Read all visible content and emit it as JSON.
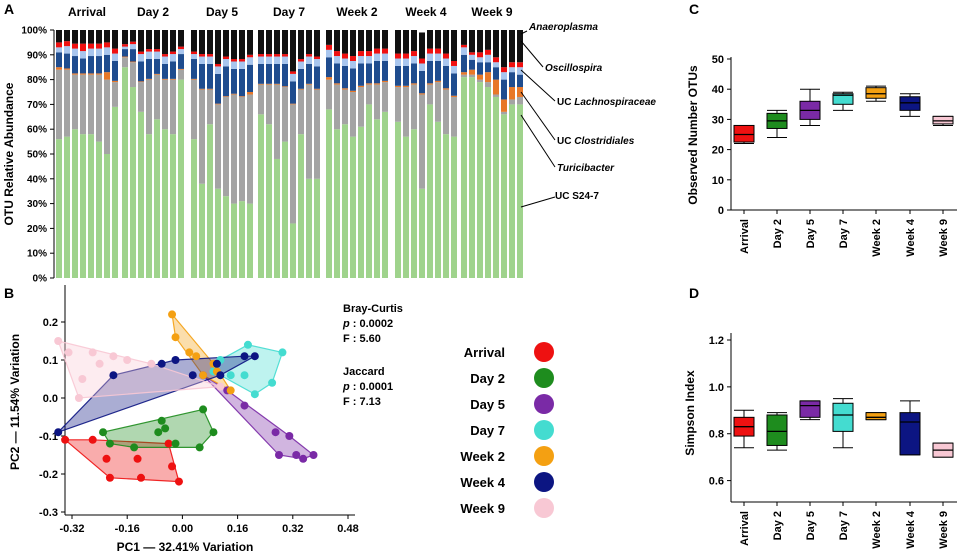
{
  "figure": {
    "colors": {
      "Arrival": "#ee1111",
      "Day 2": "#1e8c1e",
      "Day 5": "#7a2aa6",
      "Day 7": "#44dcd0",
      "Week 2": "#f4a012",
      "Week 4": "#0c1582",
      "Week 9": "#f8c8d4"
    },
    "taxa_colors": {
      "UC S24-7": "#9fd38c",
      "UC Clostridiales": "#a4a4a4",
      "Turicibacter": "#e87828",
      "UC Lachnospiraceae": "#1f4c8e",
      "Oscillospira": "#a9c6ee",
      "Anaeroplasma": "#f01010",
      "Other": "#111111"
    }
  },
  "chart_data": [
    {
      "panel": "A",
      "type": "bar",
      "stacked": true,
      "ylabel": "OTU Relative Abundance",
      "yticks": [
        "0%",
        "10%",
        "20%",
        "30%",
        "40%",
        "50%",
        "60%",
        "70%",
        "80%",
        "90%",
        "100%"
      ],
      "ylim": [
        0,
        100
      ],
      "groups": [
        "Arrival",
        "Day 2",
        "Day 5",
        "Day 7",
        "Week 2",
        "Week 4",
        "Week 9"
      ],
      "bars_per_group": 8,
      "series_order": [
        "UC S24-7",
        "UC Clostridiales",
        "Turicibacter",
        "UC Lachnospiraceae",
        "Oscillospira",
        "Anaeroplasma",
        "Other"
      ],
      "legend": [
        "Anaeroplasma",
        "Oscillospira",
        "UC Lachnospiraceae",
        "UC Clostridiales",
        "Turicibacter",
        "UC S24-7"
      ],
      "legend_prefix": "UC",
      "bars": {
        "UC S24-7": [
          56,
          57,
          60,
          58,
          58,
          55,
          50,
          69,
          85,
          77,
          67,
          58,
          64,
          60,
          58,
          80,
          56,
          38,
          62,
          36,
          33,
          30,
          31,
          30,
          66,
          62,
          48,
          55,
          22,
          58,
          40,
          40,
          68,
          60,
          62,
          57,
          61,
          70,
          64,
          67,
          63,
          57,
          60,
          36,
          70,
          63,
          58,
          57,
          81,
          81,
          79,
          77,
          73,
          66,
          70,
          70
        ],
        "UC Clostridiales": [
          28,
          27,
          22,
          24,
          24,
          27,
          30,
          10,
          4,
          10,
          12,
          22,
          18,
          20,
          22,
          4,
          24,
          38,
          14,
          34,
          40,
          44,
          42,
          44,
          12,
          16,
          30,
          22,
          48,
          18,
          38,
          36,
          12,
          18,
          14,
          18,
          16,
          8,
          14,
          12,
          14,
          20,
          18,
          38,
          8,
          16,
          18,
          16,
          1,
          1,
          1,
          2,
          1,
          1,
          2,
          3
        ],
        "Turicibacter": [
          1,
          0.5,
          0.5,
          0.5,
          0.5,
          0.5,
          3,
          0.5,
          0.3,
          0.3,
          0.3,
          0.3,
          0.3,
          0.3,
          0.3,
          0.3,
          0.3,
          0.3,
          0.3,
          0.3,
          0.3,
          0.3,
          0.3,
          1,
          0.3,
          0.3,
          0.3,
          0.3,
          0.3,
          0.3,
          0.3,
          0.3,
          1,
          0.5,
          0.5,
          0.5,
          0.5,
          0.5,
          0.5,
          0.5,
          0.5,
          0.5,
          0.5,
          0.5,
          0.5,
          0.5,
          0.5,
          0.5,
          1,
          2,
          2,
          4,
          6,
          5,
          5,
          4
        ],
        "UC Lachnospiraceae": [
          6,
          6,
          7,
          6,
          7,
          7,
          7,
          8,
          3,
          5,
          8,
          8,
          6,
          6,
          7,
          6,
          8,
          10,
          10,
          12,
          12,
          10,
          11,
          11,
          8,
          8,
          8,
          9,
          9,
          8,
          8,
          9,
          8,
          8,
          9,
          9,
          9,
          8,
          9,
          8,
          8,
          8,
          8,
          9,
          9,
          8,
          9,
          9,
          7,
          4,
          5,
          4,
          5,
          8,
          6,
          5
        ],
        "Oscillospira": [
          2,
          3,
          3,
          3,
          3,
          3,
          3,
          3,
          1,
          2,
          3,
          3,
          3,
          3,
          3,
          2,
          2,
          3,
          3,
          3,
          3,
          3,
          3,
          3,
          3,
          3,
          3,
          3,
          3,
          3,
          3,
          3,
          3,
          3,
          3,
          3,
          3,
          3,
          3,
          3,
          3,
          3,
          3,
          3,
          3,
          3,
          3,
          3,
          3,
          2,
          2,
          3,
          2,
          3,
          2,
          3
        ],
        "Anaeroplasma": [
          2,
          2,
          2,
          3,
          2,
          2,
          2,
          2,
          1,
          1,
          1,
          1,
          1,
          1,
          1,
          1,
          1,
          1,
          1,
          1,
          1,
          1,
          1,
          1,
          1,
          1,
          1,
          1,
          1,
          1,
          1,
          1,
          2,
          2,
          2,
          2,
          2,
          2,
          2,
          2,
          2,
          2,
          2,
          2,
          2,
          2,
          2,
          2,
          1,
          1,
          2,
          2,
          2,
          2,
          2,
          2
        ],
        "Other": [
          5,
          4.5,
          5.5,
          5.5,
          5.5,
          5.5,
          5,
          7.5,
          5.7,
          4.7,
          8.7,
          7.7,
          7.7,
          9.7,
          8.7,
          6.7,
          8.7,
          9.7,
          9.7,
          13.7,
          10.7,
          11.7,
          11.7,
          10,
          9.7,
          9.7,
          9.7,
          9.7,
          16.7,
          11.7,
          9.7,
          10.7,
          6,
          8.5,
          9.5,
          10.5,
          8.5,
          8.5,
          7.5,
          7.5,
          9.5,
          9.5,
          8.5,
          10.5,
          7.5,
          7.5,
          9.5,
          12.5,
          6,
          9,
          9,
          8,
          11,
          15,
          13,
          13
        ]
      }
    },
    {
      "panel": "B",
      "type": "scatter",
      "xlabel": "PC1 — 32.41% Variation",
      "ylabel": "PC2 — 11.54% Variation",
      "xticks": [
        -0.32,
        -0.16,
        0.0,
        0.16,
        0.32,
        0.48
      ],
      "xtick_labels": [
        "-0.32",
        "-0.16",
        "0.00",
        "0.16",
        "0.32",
        "0.48"
      ],
      "yticks": [
        -0.3,
        -0.2,
        -0.1,
        0.0,
        0.1,
        0.2
      ],
      "ytick_labels": [
        "-0.3",
        "-0.2",
        "-0.1",
        "0.0",
        "0.1",
        "0.2"
      ],
      "xlim": [
        -0.38,
        0.5
      ],
      "ylim": [
        -0.3,
        0.27
      ],
      "series": [
        {
          "name": "Arrival",
          "points": [
            [
              -0.34,
              -0.11
            ],
            [
              -0.26,
              -0.11
            ],
            [
              -0.22,
              -0.16
            ],
            [
              -0.21,
              -0.21
            ],
            [
              -0.12,
              -0.21
            ],
            [
              -0.13,
              -0.16
            ],
            [
              -0.04,
              -0.12
            ],
            [
              -0.01,
              -0.22
            ],
            [
              -0.03,
              -0.18
            ]
          ]
        },
        {
          "name": "Day 2",
          "points": [
            [
              -0.23,
              -0.09
            ],
            [
              -0.21,
              -0.12
            ],
            [
              -0.14,
              -0.13
            ],
            [
              -0.07,
              -0.09
            ],
            [
              -0.06,
              -0.06
            ],
            [
              -0.02,
              -0.12
            ],
            [
              -0.05,
              -0.08
            ],
            [
              0.05,
              -0.13
            ],
            [
              0.06,
              -0.03
            ],
            [
              0.09,
              -0.09
            ]
          ]
        },
        {
          "name": "Day 5",
          "points": [
            [
              0.06,
              0.06
            ],
            [
              0.13,
              0.02
            ],
            [
              0.18,
              -0.02
            ],
            [
              0.27,
              -0.09
            ],
            [
              0.31,
              -0.1
            ],
            [
              0.33,
              -0.15
            ],
            [
              0.35,
              -0.16
            ],
            [
              0.38,
              -0.15
            ],
            [
              0.28,
              -0.15
            ]
          ]
        },
        {
          "name": "Day 7",
          "points": [
            [
              0.09,
              0.07
            ],
            [
              0.11,
              0.1
            ],
            [
              0.14,
              0.06
            ],
            [
              0.18,
              0.06
            ],
            [
              0.19,
              0.14
            ],
            [
              0.29,
              0.12
            ],
            [
              0.26,
              0.04
            ],
            [
              0.21,
              0.01
            ]
          ]
        },
        {
          "name": "Week 2",
          "points": [
            [
              -0.03,
              0.22
            ],
            [
              -0.02,
              0.16
            ],
            [
              0.04,
              0.11
            ],
            [
              0.06,
              0.06
            ],
            [
              0.09,
              0.09
            ],
            [
              0.1,
              0.07
            ],
            [
              0.14,
              0.02
            ],
            [
              0.02,
              0.12
            ]
          ]
        },
        {
          "name": "Week 4",
          "points": [
            [
              -0.36,
              -0.09
            ],
            [
              -0.2,
              0.06
            ],
            [
              -0.06,
              0.09
            ],
            [
              -0.02,
              0.1
            ],
            [
              0.03,
              0.06
            ],
            [
              0.1,
              0.09
            ],
            [
              0.18,
              0.11
            ],
            [
              0.21,
              0.11
            ],
            [
              0.11,
              0.06
            ]
          ]
        },
        {
          "name": "Week 9",
          "points": [
            [
              -0.36,
              0.15
            ],
            [
              -0.33,
              0.12
            ],
            [
              -0.29,
              0.05
            ],
            [
              -0.26,
              0.12
            ],
            [
              -0.24,
              0.09
            ],
            [
              -0.2,
              0.11
            ],
            [
              -0.16,
              0.1
            ],
            [
              -0.09,
              0.09
            ],
            [
              0.11,
              0.03
            ],
            [
              -0.3,
              0.0
            ]
          ]
        }
      ],
      "stats": {
        "bray_label": "Bray-Curtis",
        "bray_p_label": "p",
        "bray_p": ": 0.0002",
        "bray_f": "F : 5.60",
        "jaccard_label": "Jaccard",
        "jaccard_p_label": "p",
        "jaccard_p": ": 0.0001",
        "jaccard_f": "F : 7.13"
      },
      "legend": [
        "Arrival",
        "Day 2",
        "Day 5",
        "Day 7",
        "Week 2",
        "Week 4",
        "Week 9"
      ]
    },
    {
      "panel": "C",
      "type": "box",
      "ylabel": "Observed Number OTUs",
      "categories": [
        "Arrival",
        "Day 2",
        "Day 5",
        "Day 7",
        "Week 2",
        "Week 4",
        "Week 9"
      ],
      "ylim": [
        0,
        50
      ],
      "yticks": [
        0,
        10,
        20,
        30,
        40,
        50
      ],
      "boxes": [
        {
          "min": 22,
          "q1": 22.5,
          "median": 25,
          "q3": 28,
          "max": 28
        },
        {
          "min": 24,
          "q1": 27,
          "median": 29.5,
          "q3": 32,
          "max": 33
        },
        {
          "min": 28,
          "q1": 30,
          "median": 33,
          "q3": 36,
          "max": 40
        },
        {
          "min": 33,
          "q1": 35,
          "median": 38,
          "q3": 38.5,
          "max": 39
        },
        {
          "min": 36,
          "q1": 37,
          "median": 38.5,
          "q3": 40.5,
          "max": 41
        },
        {
          "min": 31,
          "q1": 33,
          "median": 35.5,
          "q3": 37.5,
          "max": 38.5
        },
        {
          "min": 28,
          "q1": 28.5,
          "median": 29.5,
          "q3": 31,
          "max": 31
        }
      ]
    },
    {
      "panel": "D",
      "type": "box",
      "ylabel": "Simpson Index",
      "categories": [
        "Arrival",
        "Day 2",
        "Day 5",
        "Day 7",
        "Week 2",
        "Week 4",
        "Week 9"
      ],
      "ylim": [
        0.53,
        1.2
      ],
      "yticks": [
        0.6,
        0.8,
        1.0,
        1.2
      ],
      "ytick_labels": [
        "0.6",
        "0.8",
        "1.0",
        "1.2"
      ],
      "boxes": [
        {
          "min": 0.74,
          "q1": 0.79,
          "median": 0.83,
          "q3": 0.87,
          "max": 0.9
        },
        {
          "min": 0.73,
          "q1": 0.75,
          "median": 0.81,
          "q3": 0.88,
          "max": 0.89
        },
        {
          "min": 0.86,
          "q1": 0.87,
          "median": 0.92,
          "q3": 0.94,
          "max": 0.94
        },
        {
          "min": 0.74,
          "q1": 0.81,
          "median": 0.88,
          "q3": 0.93,
          "max": 0.95
        },
        {
          "min": 0.86,
          "q1": 0.86,
          "median": 0.87,
          "q3": 0.89,
          "max": 0.89
        },
        {
          "min": 0.71,
          "q1": 0.71,
          "median": 0.85,
          "q3": 0.89,
          "max": 0.94
        },
        {
          "min": 0.7,
          "q1": 0.7,
          "median": 0.73,
          "q3": 0.76,
          "max": 0.76
        }
      ]
    }
  ],
  "panel_labels": {
    "a": "A",
    "b": "B",
    "c": "C",
    "d": "D"
  }
}
